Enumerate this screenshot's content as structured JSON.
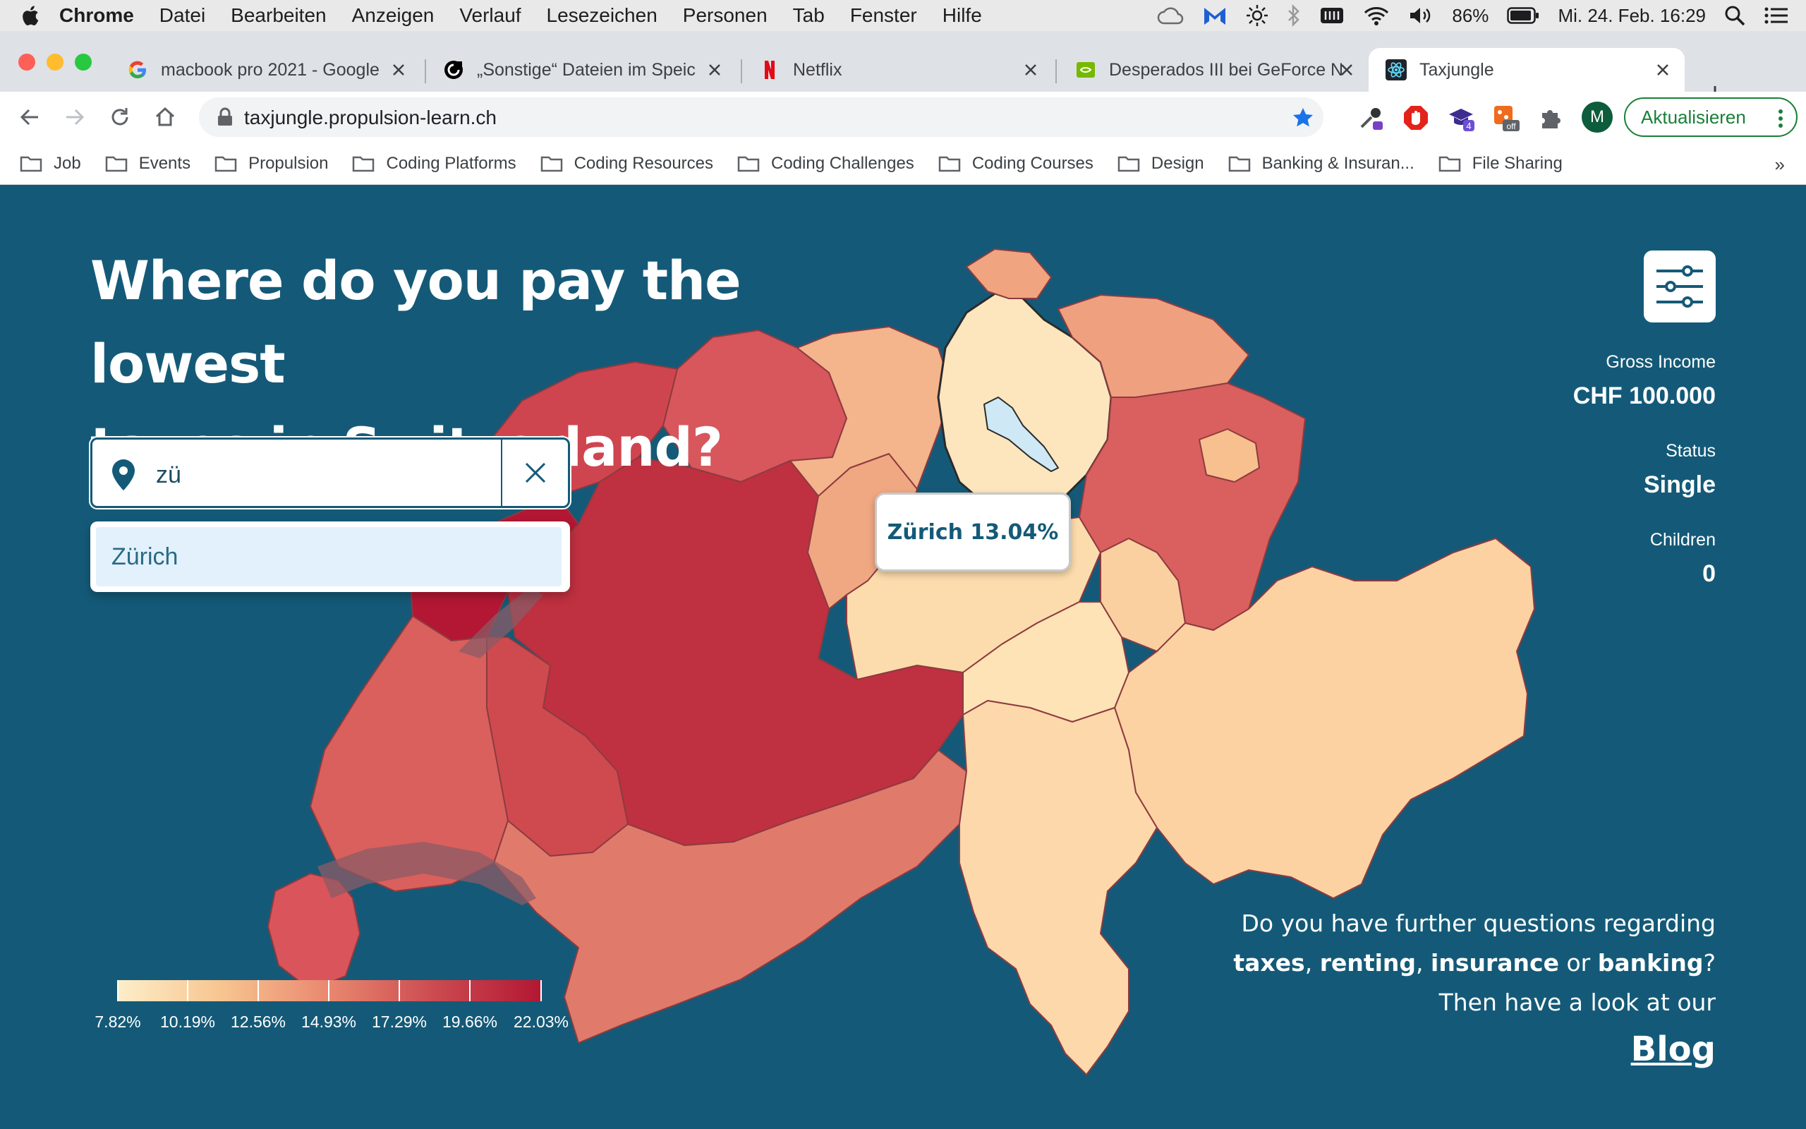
{
  "menubar": {
    "items": [
      "Chrome",
      "Datei",
      "Bearbeiten",
      "Anzeigen",
      "Verlauf",
      "Lesezeichen",
      "Personen",
      "Tab",
      "Fenster",
      "Hilfe"
    ],
    "battery": "86%",
    "clock": "Mi. 24. Feb.  16:29"
  },
  "tabs": [
    {
      "title": "macbook pro 2021 - Google"
    },
    {
      "title": "„Sonstige“ Dateien im Speic"
    },
    {
      "title": "Netflix"
    },
    {
      "title": "Desperados III bei GeForce N"
    },
    {
      "title": "Taxjungle"
    }
  ],
  "toolbar": {
    "url": "taxjungle.propulsion-learn.ch",
    "profile_initial": "M",
    "update_label": "Aktualisieren",
    "ext_badge": "4",
    "ext_off": "off"
  },
  "bookmarks": [
    "Job",
    "Events",
    "Propulsion",
    "Coding Platforms",
    "Coding Resources",
    "Coding Challenges",
    "Coding Courses",
    "Design",
    "Banking & Insuran...",
    "File Sharing"
  ],
  "bookmarks_more": "»",
  "page": {
    "headline_line1": "Where do you pay the lowest",
    "headline_line2": "taxes in Switzerland?",
    "search": {
      "value": "zü"
    },
    "suggestion": "Zürich",
    "tooltip": "Zürich 13.04%",
    "stats": {
      "income_label": "Gross Income",
      "income_value": "CHF 100.000",
      "status_label": "Status",
      "status_value": "Single",
      "children_label": "Children",
      "children_value": "0"
    },
    "blog": {
      "line1": "Do you have further questions regarding",
      "w_taxes": "taxes",
      "w_renting": "renting",
      "w_insurance": "insurance",
      "w_or": "or",
      "w_banking": "banking",
      "line3": "Then have a look at our",
      "link": "Blog"
    },
    "legend": [
      "7.82%",
      "10.19%",
      "12.56%",
      "14.93%",
      "17.29%",
      "19.66%",
      "22.03%"
    ]
  },
  "colors": {
    "background": "#145a78",
    "low": "#fdeec9",
    "high": "#b31733"
  }
}
